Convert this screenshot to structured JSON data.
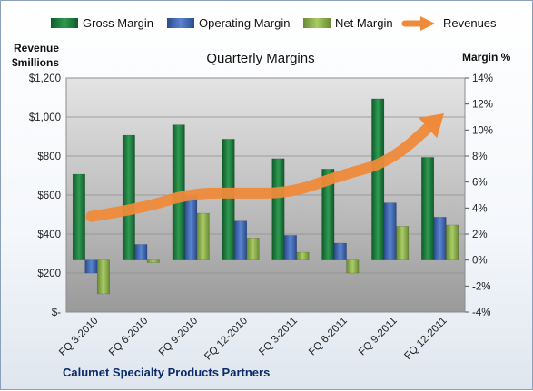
{
  "chart_data": {
    "type": "bar",
    "title": "Quarterly Margins",
    "ylabel_left": [
      "Revenue",
      "$millions"
    ],
    "ylabel_right": "Margin %",
    "footer": "Calumet Specialty Products Partners",
    "categories": [
      "FQ 3-2010",
      "FQ 6-2010",
      "FQ 9-2010",
      "FQ 12-2010",
      "FQ 3-2011",
      "FQ 6-2011",
      "FQ 9-2011",
      "FQ 12-2011"
    ],
    "left_axis": {
      "min": 0,
      "max": 1200,
      "ticks": [
        "$-",
        "$200",
        "$400",
        "$600",
        "$800",
        "$1,000",
        "$1,200"
      ]
    },
    "right_axis": {
      "min": -4,
      "max": 14,
      "ticks": [
        "-4%",
        "-2%",
        "0%",
        "2%",
        "4%",
        "6%",
        "8%",
        "10%",
        "12%",
        "14%"
      ]
    },
    "legend_position": "top",
    "grid": true,
    "series": [
      {
        "name": "Gross Margin",
        "axis": "right",
        "color": "#1e7a3c",
        "values": [
          6.6,
          9.6,
          10.4,
          9.3,
          7.8,
          7.0,
          12.4,
          7.9
        ]
      },
      {
        "name": "Operating Margin",
        "axis": "right",
        "color": "#3b64b4",
        "values": [
          -1.0,
          1.2,
          5.0,
          3.0,
          1.9,
          1.3,
          4.4,
          3.3
        ]
      },
      {
        "name": "Net Margin",
        "axis": "right",
        "color": "#8bb04c",
        "values": [
          -2.6,
          -0.2,
          3.6,
          1.7,
          0.6,
          -1.0,
          2.6,
          2.7
        ]
      },
      {
        "name": "Revenues",
        "axis": "left",
        "color": "#ee8a3a",
        "type": "line",
        "values": [
          490,
          530,
          610,
          610,
          610,
          700,
          770,
          1000
        ]
      }
    ]
  }
}
